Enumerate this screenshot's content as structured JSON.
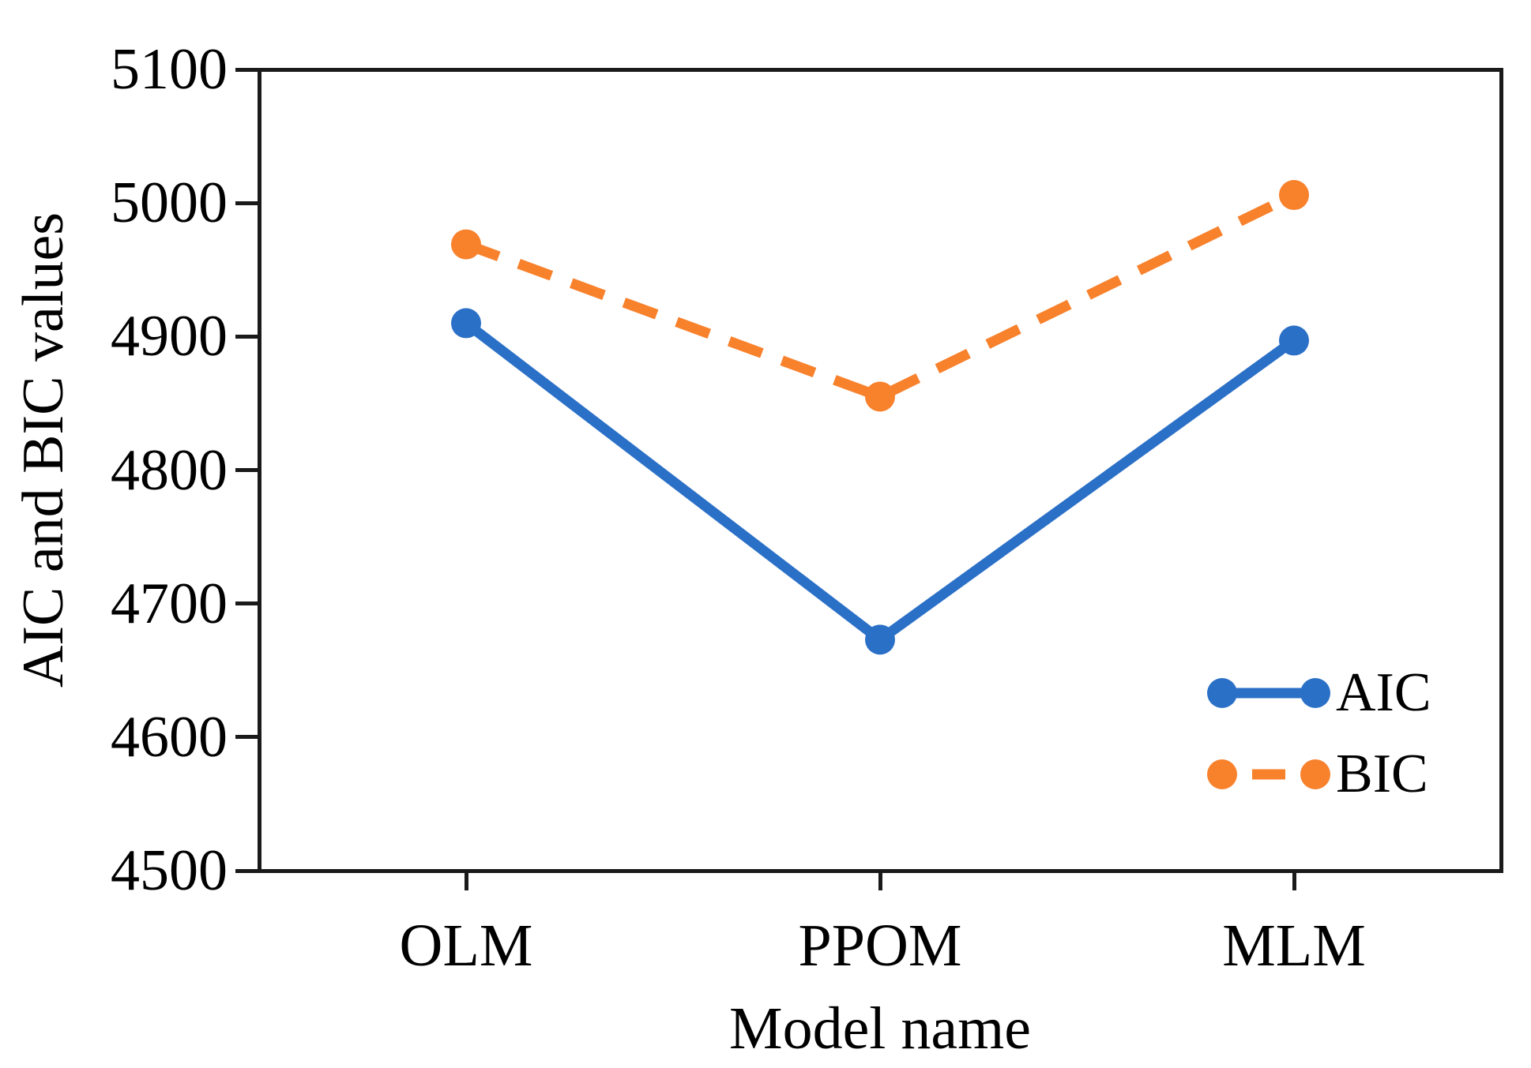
{
  "figure": {
    "background": "#ffffff"
  },
  "chart_data": {
    "type": "line",
    "title": "",
    "xlabel": "Model name",
    "ylabel": "AIC and BIC values",
    "categories": [
      "OLM",
      "PPOM",
      "MLM"
    ],
    "series": [
      {
        "name": "AIC",
        "color": "#2B70C7",
        "line_style": "solid",
        "marker": "circle",
        "values": [
          4910,
          4673,
          4897
        ]
      },
      {
        "name": "BIC",
        "color": "#F8812C",
        "line_style": "dashed",
        "marker": "circle",
        "values": [
          4969,
          4855,
          5006
        ]
      }
    ],
    "ylim": [
      4500,
      5100
    ],
    "yticks": [
      5100,
      5000,
      4900,
      4800,
      4700,
      4600,
      4500
    ],
    "grid": false,
    "legend_position": "lower right",
    "axis_color": "#1a1a1a"
  }
}
